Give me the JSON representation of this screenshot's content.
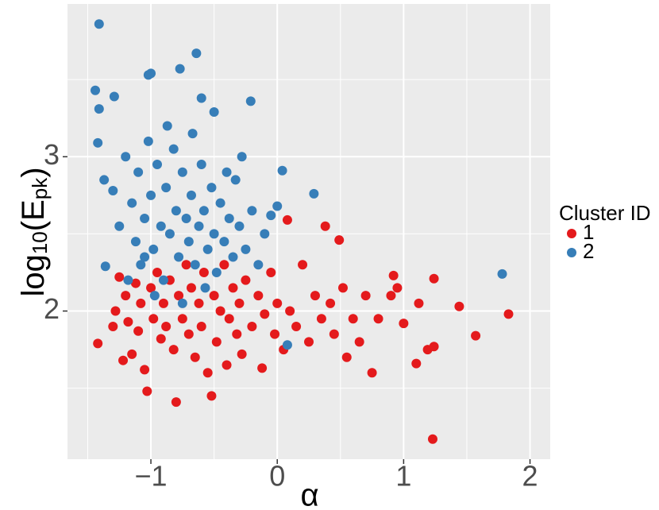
{
  "chart_data": {
    "type": "scatter",
    "xlabel": "α",
    "ylabel": [
      "log",
      "10",
      "(E",
      "pk",
      ")"
    ],
    "legend_title": "Cluster ID",
    "legend": "right",
    "grid": true,
    "xlim": [
      -1.66,
      2.16
    ],
    "ylim": [
      1.04,
      3.99
    ],
    "xticks": [
      {
        "value": -1,
        "label": "−1"
      },
      0,
      1,
      2
    ],
    "yticks": [
      2,
      3
    ],
    "xminor": [
      -1.5,
      -0.5,
      0.5,
      1.5
    ],
    "yminor": [
      1.5,
      2.5,
      3.5
    ],
    "series": [
      {
        "name": "1",
        "color": "#e41a1c",
        "x": [
          -1.42,
          -1.3,
          -1.28,
          -1.25,
          -1.22,
          -1.2,
          -1.18,
          -1.15,
          -1.12,
          -1.1,
          -1.08,
          -1.05,
          -1.03,
          -1.0,
          -0.98,
          -0.95,
          -0.92,
          -0.9,
          -0.88,
          -0.85,
          -0.82,
          -0.8,
          -0.78,
          -0.75,
          -0.72,
          -0.7,
          -0.68,
          -0.65,
          -0.62,
          -0.6,
          -0.58,
          -0.55,
          -0.52,
          -0.5,
          -0.48,
          -0.45,
          -0.42,
          -0.4,
          -0.38,
          -0.35,
          -0.32,
          -0.3,
          -0.28,
          -0.25,
          -0.2,
          -0.15,
          -0.12,
          -0.1,
          -0.05,
          -0.02,
          0.0,
          0.05,
          0.08,
          0.1,
          0.15,
          0.2,
          0.25,
          0.3,
          0.35,
          0.38,
          0.42,
          0.45,
          0.49,
          0.52,
          0.55,
          0.6,
          0.65,
          0.7,
          0.75,
          0.8,
          0.9,
          0.92,
          0.95,
          1.0,
          1.1,
          1.12,
          1.19,
          1.24,
          1.24,
          1.23,
          1.44,
          1.57,
          1.83
        ],
        "values": [
          1.79,
          1.9,
          2.0,
          2.22,
          1.68,
          2.1,
          1.93,
          1.72,
          2.18,
          1.87,
          2.05,
          1.62,
          1.48,
          2.15,
          1.95,
          2.25,
          1.82,
          2.05,
          1.9,
          2.2,
          1.75,
          1.41,
          2.1,
          1.95,
          2.3,
          1.85,
          2.15,
          1.7,
          2.05,
          1.9,
          2.25,
          1.6,
          1.45,
          2.1,
          1.8,
          2.0,
          2.3,
          1.65,
          1.95,
          2.15,
          1.85,
          2.05,
          1.72,
          2.2,
          1.9,
          2.1,
          1.63,
          1.98,
          2.25,
          1.85,
          2.05,
          1.75,
          2.59,
          2.0,
          1.9,
          2.3,
          1.8,
          2.1,
          1.95,
          2.55,
          2.05,
          1.85,
          2.46,
          2.15,
          1.7,
          1.95,
          1.8,
          2.1,
          1.6,
          1.95,
          2.1,
          2.23,
          2.15,
          1.92,
          1.66,
          2.05,
          1.75,
          1.77,
          2.21,
          1.17,
          2.03,
          1.84,
          1.98
        ]
      },
      {
        "name": "2",
        "color": "#377eb8",
        "x": [
          -1.41,
          -0.64,
          -1.0,
          -1.02,
          -0.77,
          -1.44,
          -1.29,
          -1.41,
          -0.6,
          -0.21,
          -0.5,
          -1.42,
          1.78,
          0.04,
          0.29,
          0.08,
          -1.37,
          -1.36,
          -1.2,
          -1.15,
          -1.12,
          -1.1,
          -1.08,
          -1.05,
          -1.02,
          -1.0,
          -0.98,
          -0.95,
          -0.92,
          -0.9,
          -0.88,
          -0.85,
          -0.82,
          -0.8,
          -0.78,
          -0.75,
          -0.72,
          -0.7,
          -0.68,
          -0.65,
          -0.62,
          -0.6,
          -0.58,
          -0.55,
          -0.52,
          -0.5,
          -0.48,
          -0.45,
          -0.42,
          -0.4,
          -0.38,
          -0.35,
          -0.3,
          -0.28,
          -0.25,
          -0.2,
          -0.15,
          -0.1,
          -0.05,
          0.0,
          -1.25,
          -1.18,
          -1.3,
          -0.97,
          -0.87,
          -0.67,
          -0.57,
          -0.33,
          -1.05,
          -0.75
        ],
        "values": [
          3.86,
          3.67,
          3.54,
          3.53,
          3.57,
          3.43,
          3.39,
          3.31,
          3.38,
          3.36,
          3.29,
          3.09,
          2.24,
          2.91,
          2.76,
          1.78,
          2.85,
          2.29,
          3.0,
          2.7,
          2.45,
          2.9,
          2.3,
          2.6,
          3.1,
          2.75,
          2.4,
          2.95,
          2.55,
          2.2,
          2.8,
          2.5,
          3.05,
          2.65,
          2.35,
          2.9,
          2.6,
          2.45,
          2.75,
          2.3,
          2.55,
          2.95,
          2.65,
          2.4,
          2.8,
          2.5,
          2.25,
          2.7,
          2.45,
          2.9,
          2.6,
          2.35,
          2.55,
          3.0,
          2.4,
          2.65,
          2.3,
          2.5,
          2.62,
          2.68,
          2.55,
          2.2,
          2.78,
          2.1,
          3.2,
          3.15,
          2.15,
          2.85,
          2.35,
          2.05
        ]
      }
    ]
  }
}
